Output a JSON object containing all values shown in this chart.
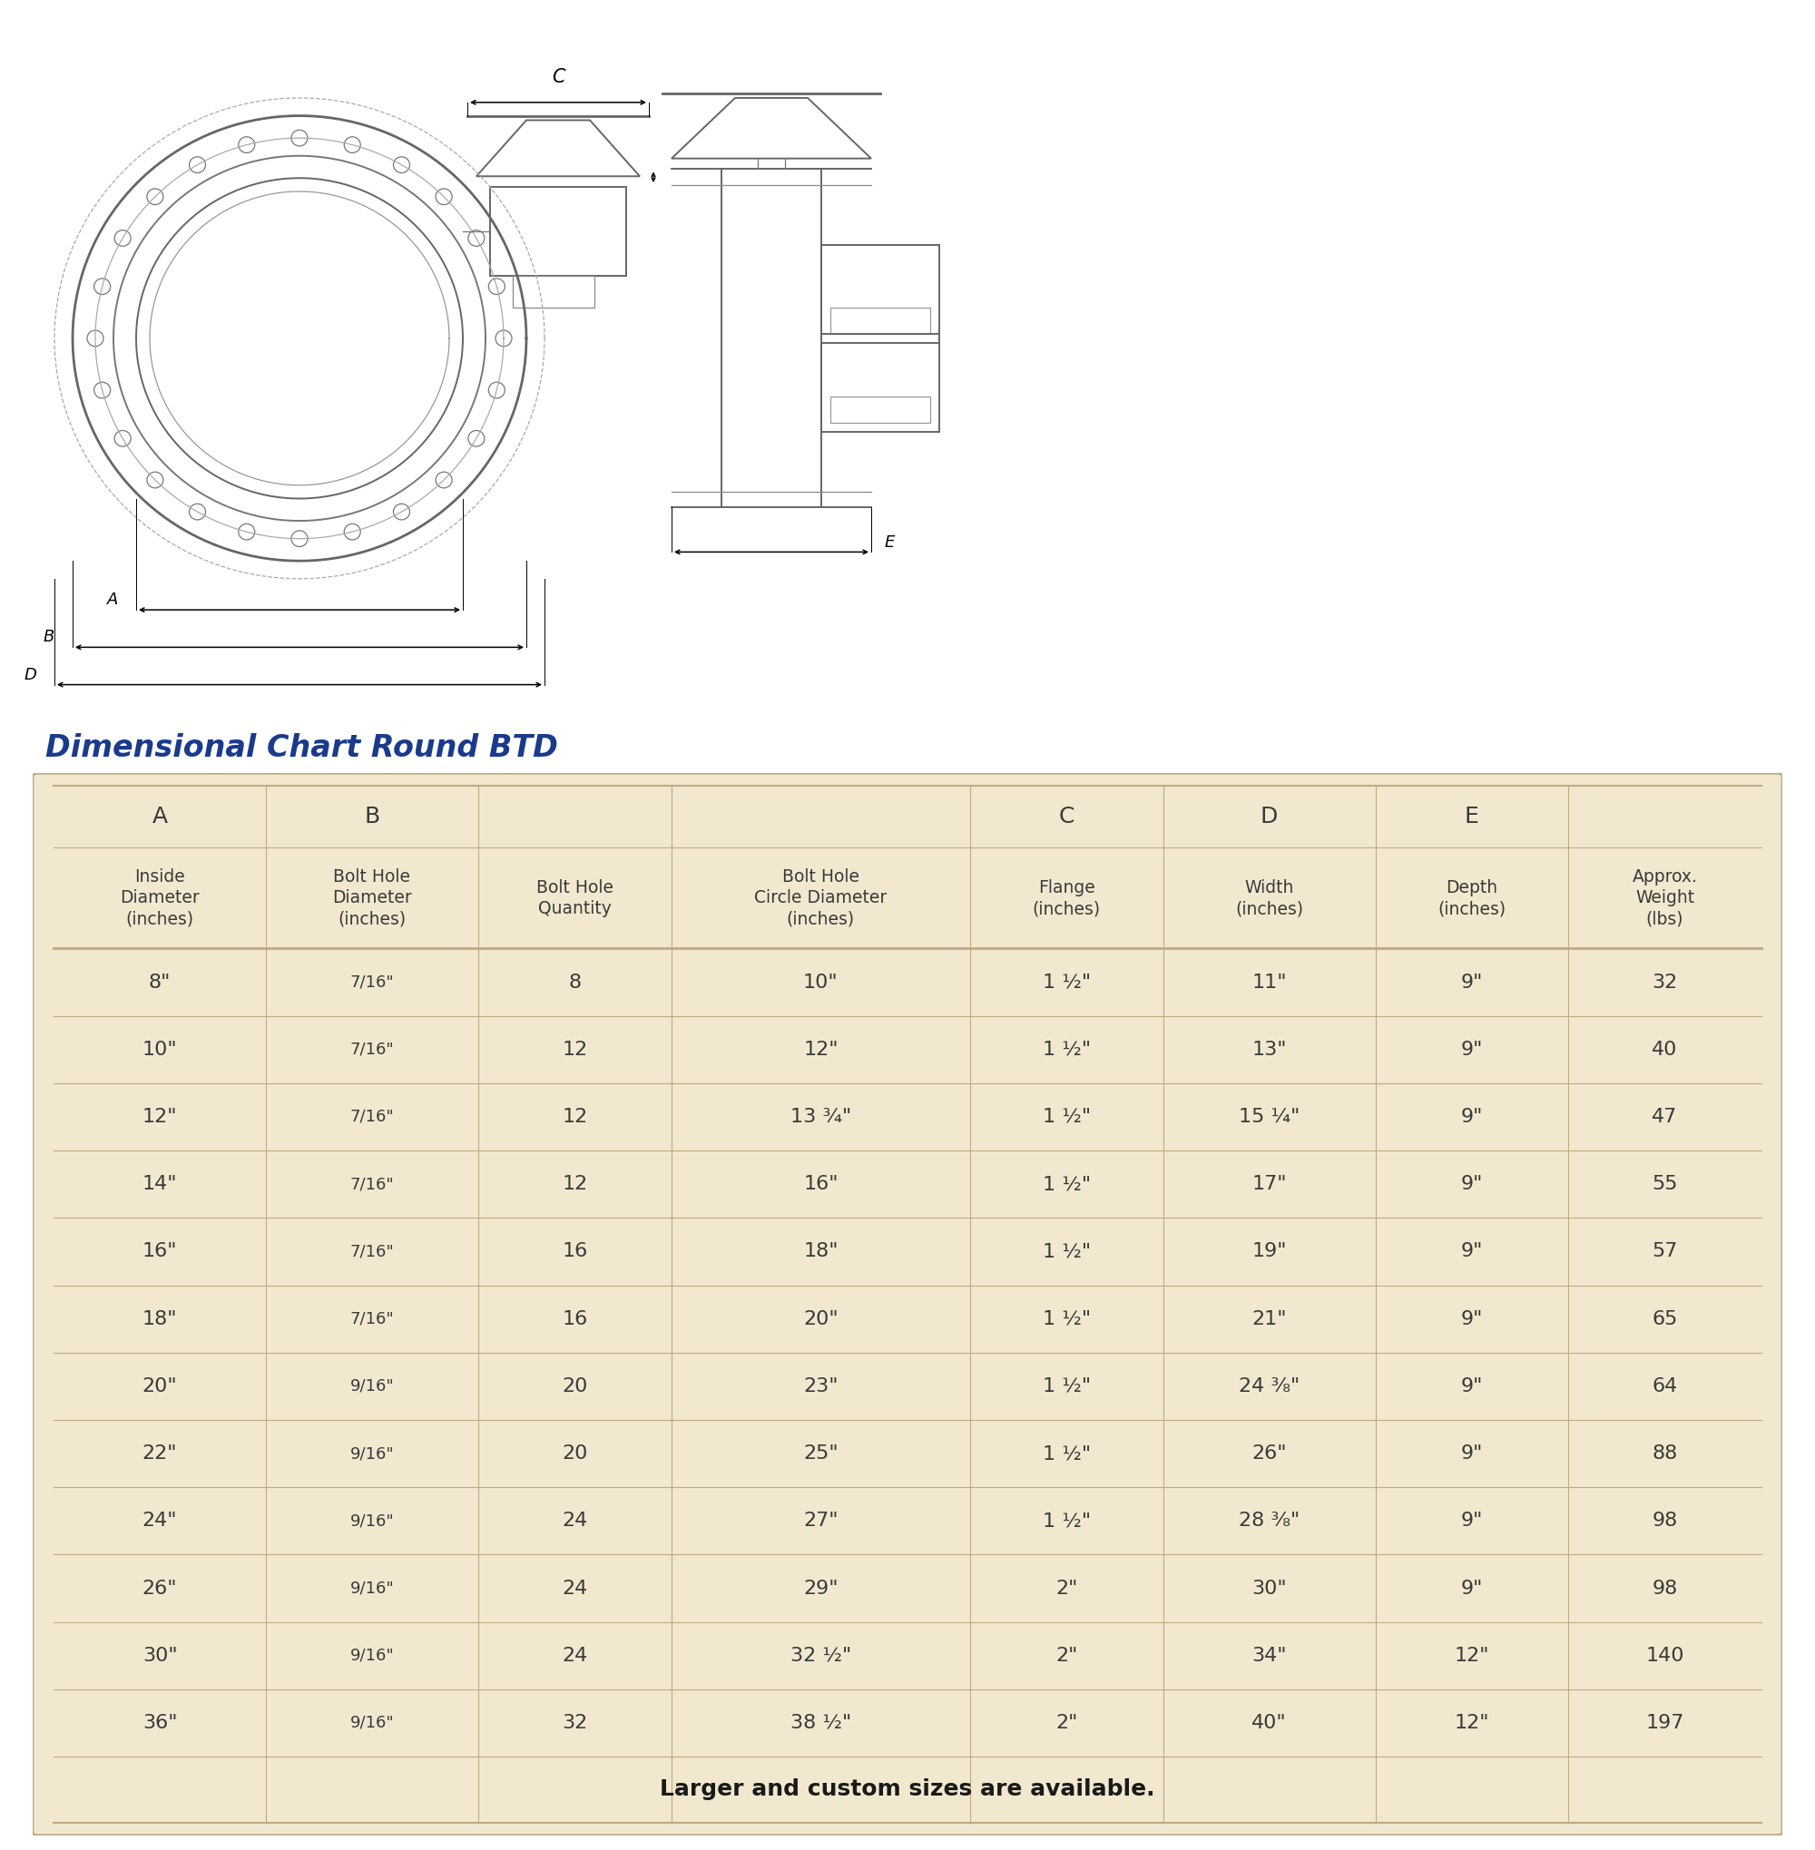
{
  "title": "Dimensional Chart Round BTD",
  "title_color": "#1a3a8c",
  "table_bg": "#f2e8d0",
  "table_border": "#c0aa80",
  "text_color": "#555555",
  "bold_color": "#333333",
  "fig_bg": "#ffffff",
  "col_headers_top": [
    "A",
    "B",
    "",
    "",
    "C",
    "D",
    "E",
    ""
  ],
  "col_headers_bottom": [
    "Inside\nDiameter\n(inches)",
    "Bolt Hole\nDiameter\n(inches)",
    "Bolt Hole\nQuantity",
    "Bolt Hole\nCircle Diameter\n(inches)",
    "Flange\n(inches)",
    "Width\n(inches)",
    "Depth\n(inches)",
    "Approx.\nWeight\n(lbs)"
  ],
  "rows": [
    [
      "8\"",
      "7/16\"",
      "8",
      "10\"",
      "1 ½\"",
      "11\"",
      "9\"",
      "32"
    ],
    [
      "10\"",
      "7/16\"",
      "12",
      "12\"",
      "1 ½\"",
      "13\"",
      "9\"",
      "40"
    ],
    [
      "12\"",
      "7/16\"",
      "12",
      "13 ¾\"",
      "1 ½\"",
      "15 ¼\"",
      "9\"",
      "47"
    ],
    [
      "14\"",
      "7/16\"",
      "12",
      "16\"",
      "1 ½\"",
      "17\"",
      "9\"",
      "55"
    ],
    [
      "16\"",
      "7/16\"",
      "16",
      "18\"",
      "1 ½\"",
      "19\"",
      "9\"",
      "57"
    ],
    [
      "18\"",
      "7/16\"",
      "16",
      "20\"",
      "1 ½\"",
      "21\"",
      "9\"",
      "65"
    ],
    [
      "20\"",
      "9/16\"",
      "20",
      "23\"",
      "1 ½\"",
      "24 ⅜\"",
      "9\"",
      "64"
    ],
    [
      "22\"",
      "9/16\"",
      "20",
      "25\"",
      "1 ½\"",
      "26\"",
      "9\"",
      "88"
    ],
    [
      "24\"",
      "9/16\"",
      "24",
      "27\"",
      "1 ½\"",
      "28 ⅜\"",
      "9\"",
      "98"
    ],
    [
      "26\"",
      "9/16\"",
      "24",
      "29\"",
      "2\"",
      "30\"",
      "9\"",
      "98"
    ],
    [
      "30\"",
      "9/16\"",
      "24",
      "32 ½\"",
      "2\"",
      "34\"",
      "12\"",
      "140"
    ],
    [
      "36\"",
      "9/16\"",
      "32",
      "38 ½\"",
      "2\"",
      "40\"",
      "12\"",
      "197"
    ]
  ],
  "footer_text": "Larger and custom sizes are available.",
  "col_widths_rel": [
    1.1,
    1.1,
    1.0,
    1.55,
    1.0,
    1.1,
    1.0,
    1.0
  ]
}
